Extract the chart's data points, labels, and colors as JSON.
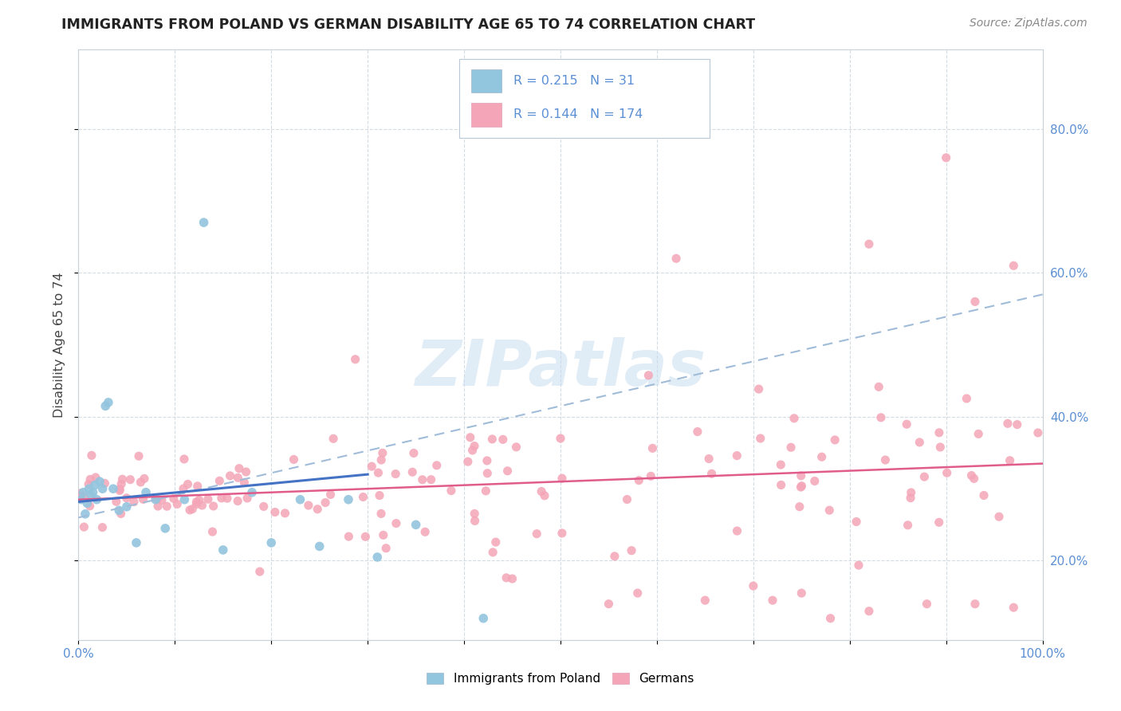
{
  "title": "IMMIGRANTS FROM POLAND VS GERMAN DISABILITY AGE 65 TO 74 CORRELATION CHART",
  "source": "Source: ZipAtlas.com",
  "ylabel": "Disability Age 65 to 74",
  "xlim": [
    0.0,
    1.0
  ],
  "ylim": [
    0.09,
    0.91
  ],
  "xticks": [
    0.0,
    0.1,
    0.2,
    0.3,
    0.4,
    0.5,
    0.6,
    0.7,
    0.8,
    0.9,
    1.0
  ],
  "xtick_labels": [
    "0.0%",
    "",
    "",
    "",
    "",
    "",
    "",
    "",
    "",
    "",
    "100.0%"
  ],
  "yticks": [
    0.2,
    0.4,
    0.6,
    0.8
  ],
  "ytick_labels": [
    "20.0%",
    "40.0%",
    "60.0%",
    "80.0%"
  ],
  "legend_blue_label": "Immigrants from Poland",
  "legend_pink_label": "Germans",
  "r_blue": "0.215",
  "n_blue": "31",
  "r_pink": "0.144",
  "n_pink": "174",
  "blue_color": "#92c5de",
  "pink_color": "#f4a6b8",
  "blue_line_color": "#4472c4",
  "pink_line_color": "#e05c8a",
  "dashed_line_color": "#a0bcd8",
  "watermark_color": "#c8ddf0",
  "background_color": "#ffffff",
  "grid_color": "#d0d8e0",
  "tick_color": "#5b8fd4",
  "title_color": "#222222",
  "source_color": "#888888",
  "blue_scatter_seed": 7,
  "pink_scatter_seed": 13
}
